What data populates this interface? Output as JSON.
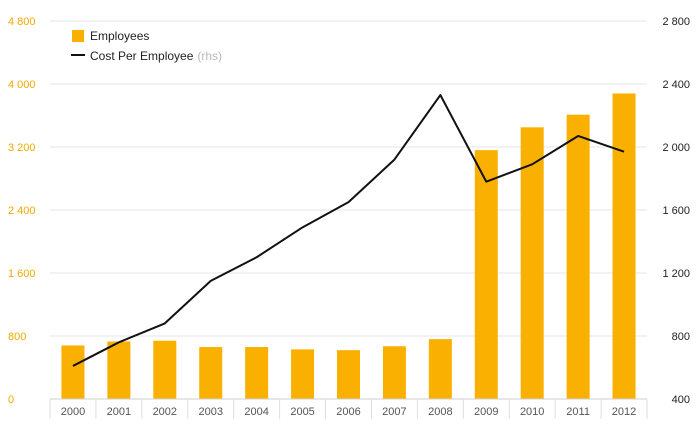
{
  "colors": {
    "bar": "#f9b000",
    "line": "#111111",
    "left_axis_text": "#f2a900",
    "right_axis_text": "#222222",
    "x_axis_text": "#555555",
    "grid": "#e6e6e6",
    "muted": "#b8b8b8"
  },
  "chart_data": {
    "type": "bar",
    "categories": [
      "2000",
      "2001",
      "2002",
      "2003",
      "2004",
      "2005",
      "2006",
      "2007",
      "2008",
      "2009",
      "2010",
      "2011",
      "2012"
    ],
    "legend_position": "top-left",
    "grid": true,
    "series": [
      {
        "name": "Employees",
        "type": "bar",
        "axis": "left",
        "values": [
          680,
          730,
          740,
          660,
          660,
          630,
          620,
          670,
          760,
          3160,
          3450,
          3610,
          3880
        ]
      },
      {
        "name": "Cost Per Employee",
        "name_suffix": "(rhs)",
        "type": "line",
        "axis": "right",
        "values": [
          610,
          760,
          880,
          1150,
          1300,
          1490,
          1650,
          1920,
          2330,
          1780,
          1890,
          2070,
          1970
        ]
      }
    ],
    "y_left": {
      "lim": [
        0,
        4800
      ],
      "ticks": [
        0,
        800,
        1600,
        2400,
        3200,
        4000,
        4800
      ],
      "tick_labels": [
        "0",
        "800",
        "1 600",
        "2 400",
        "3 200",
        "4 000",
        "4 800"
      ]
    },
    "y_right": {
      "lim": [
        400,
        2800
      ],
      "ticks": [
        400,
        800,
        1200,
        1600,
        2000,
        2400,
        2800
      ],
      "tick_labels": [
        "400",
        "800",
        "1 200",
        "1 600",
        "2 000",
        "2 400",
        "2 800"
      ]
    }
  }
}
